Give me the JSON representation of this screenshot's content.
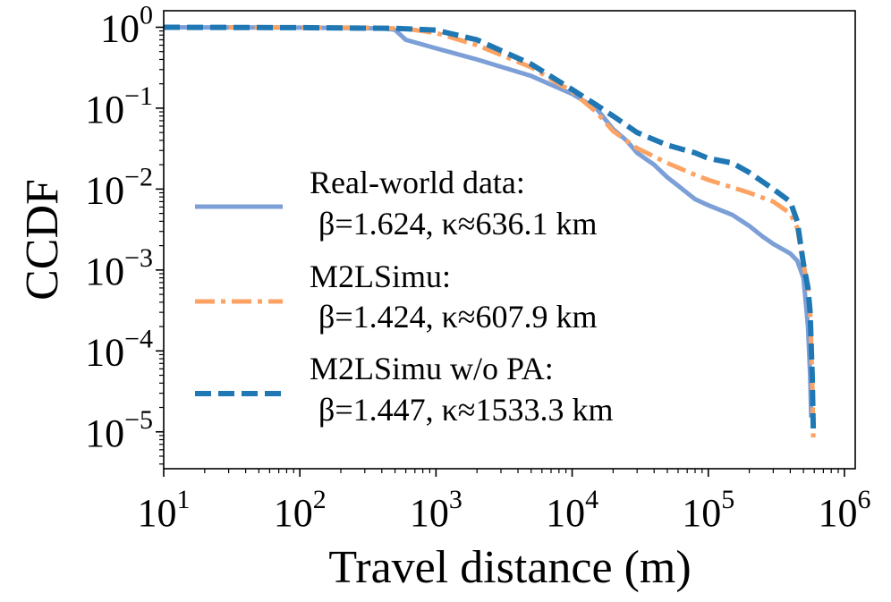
{
  "chart_data": {
    "type": "line",
    "xscale": "log",
    "yscale": "log",
    "xlim": [
      10,
      1200000
    ],
    "ylim": [
      3.5e-06,
      1.6
    ],
    "xlabel": "Travel distance (m)",
    "ylabel": "CCDF",
    "x_ticks": [
      {
        "value": 10,
        "base": "10",
        "exp": "1"
      },
      {
        "value": 100,
        "base": "10",
        "exp": "2"
      },
      {
        "value": 1000,
        "base": "10",
        "exp": "3"
      },
      {
        "value": 10000,
        "base": "10",
        "exp": "4"
      },
      {
        "value": 100000,
        "base": "10",
        "exp": "5"
      },
      {
        "value": 1000000,
        "base": "10",
        "exp": "6"
      }
    ],
    "y_ticks": [
      {
        "value": 1,
        "base": "10",
        "exp": "0"
      },
      {
        "value": 0.1,
        "base": "10",
        "exp": "−1"
      },
      {
        "value": 0.01,
        "base": "10",
        "exp": "−2"
      },
      {
        "value": 0.001,
        "base": "10",
        "exp": "−3"
      },
      {
        "value": 0.0001,
        "base": "10",
        "exp": "−4"
      },
      {
        "value": 1e-05,
        "base": "10",
        "exp": "−5"
      }
    ],
    "grid": false,
    "legend_position": "center-left",
    "series": [
      {
        "name": "Real-world data:",
        "params": "β=1.624, κ≈636.1 km",
        "color": "#7b9fd6",
        "style": "solid",
        "points": [
          [
            10,
            1.0
          ],
          [
            100,
            0.99
          ],
          [
            400,
            0.97
          ],
          [
            500,
            0.93
          ],
          [
            600,
            0.7
          ],
          [
            1000,
            0.55
          ],
          [
            2000,
            0.4
          ],
          [
            5000,
            0.25
          ],
          [
            10000,
            0.15
          ],
          [
            15000,
            0.1
          ],
          [
            20000,
            0.055
          ],
          [
            25000,
            0.04
          ],
          [
            30000,
            0.028
          ],
          [
            40000,
            0.02
          ],
          [
            50000,
            0.014
          ],
          [
            60000,
            0.011
          ],
          [
            80000,
            0.0075
          ],
          [
            100000,
            0.0063
          ],
          [
            150000,
            0.0048
          ],
          [
            200000,
            0.0035
          ],
          [
            250000,
            0.0026
          ],
          [
            300000,
            0.0021
          ],
          [
            400000,
            0.0016
          ],
          [
            450000,
            0.0013
          ],
          [
            500000,
            0.0008
          ],
          [
            520000,
            0.0004
          ],
          [
            540000,
            0.0002
          ],
          [
            560000,
            5e-05
          ],
          [
            570000,
            1.5e-05
          ]
        ]
      },
      {
        "name": "M2LSimu:",
        "params": "β=1.424, κ≈607.9 km",
        "color": "#fca263",
        "style": "dashdot",
        "points": [
          [
            30,
            1.0
          ],
          [
            300,
            0.99
          ],
          [
            600,
            0.96
          ],
          [
            1000,
            0.85
          ],
          [
            2000,
            0.6
          ],
          [
            5000,
            0.32
          ],
          [
            10000,
            0.16
          ],
          [
            15000,
            0.09
          ],
          [
            20000,
            0.052
          ],
          [
            30000,
            0.032
          ],
          [
            50000,
            0.021
          ],
          [
            80000,
            0.015
          ],
          [
            100000,
            0.013
          ],
          [
            150000,
            0.0105
          ],
          [
            200000,
            0.009
          ],
          [
            300000,
            0.007
          ],
          [
            400000,
            0.005
          ],
          [
            450000,
            0.0033
          ],
          [
            500000,
            0.0012
          ],
          [
            540000,
            0.0006
          ],
          [
            560000,
            0.0003
          ],
          [
            580000,
            5e-05
          ],
          [
            590000,
            8.5e-06
          ]
        ]
      },
      {
        "name": "M2LSimu w/o PA:",
        "params": "β=1.447, κ≈1533.3 km",
        "color": "#1f77b4",
        "style": "dashed",
        "points": [
          [
            10,
            1.0
          ],
          [
            100,
            0.99
          ],
          [
            500,
            0.97
          ],
          [
            1000,
            0.92
          ],
          [
            2000,
            0.7
          ],
          [
            5000,
            0.35
          ],
          [
            10000,
            0.17
          ],
          [
            15000,
            0.11
          ],
          [
            20000,
            0.08
          ],
          [
            30000,
            0.05
          ],
          [
            50000,
            0.035
          ],
          [
            80000,
            0.028
          ],
          [
            100000,
            0.024
          ],
          [
            150000,
            0.021
          ],
          [
            200000,
            0.016
          ],
          [
            300000,
            0.01
          ],
          [
            400000,
            0.007
          ],
          [
            450000,
            0.004
          ],
          [
            500000,
            0.0012
          ],
          [
            540000,
            0.0006
          ],
          [
            560000,
            0.0003
          ],
          [
            580000,
            5e-05
          ],
          [
            590000,
            1.1e-05
          ]
        ]
      }
    ]
  }
}
